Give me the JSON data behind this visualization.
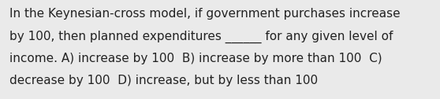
{
  "line1": "In the Keynesian-cross model, if government purchases increase",
  "line2": "by 100, then planned expenditures ______ for any given level of",
  "line3": "income. A) increase by 100  B) increase by more than 100  C)",
  "line4": "decrease by 100  D) increase, but by less than 100",
  "background_color": "#eaeaea",
  "text_color": "#222222",
  "font_size": 11.0,
  "fig_width": 5.58,
  "fig_height": 1.26,
  "dpi": 100
}
